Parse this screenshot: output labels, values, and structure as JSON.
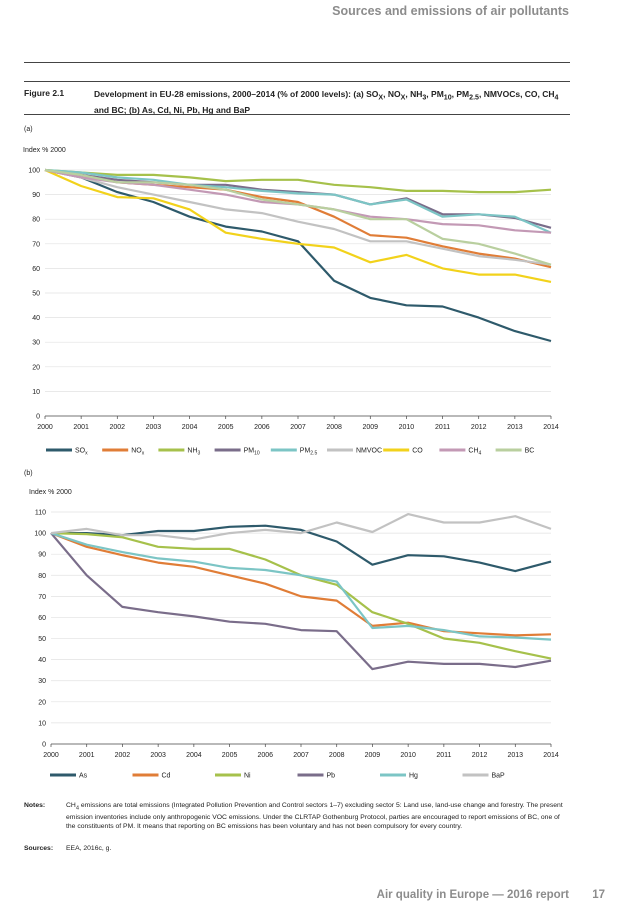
{
  "header": {
    "section_title": "Sources and emissions of air pollutants"
  },
  "figure": {
    "label": "Figure 2.1",
    "title_parts": [
      "Development in EU-28 emissions, 2000–2014 (% of 2000 levels): (a) SO",
      "X",
      ", NO",
      "X",
      ", NH",
      "3",
      ", PM",
      "10",
      ", PM",
      "2.5",
      ", NMVOCs, CO, CH",
      "4",
      " and BC; (b) As, Cd, Ni, Pb, Hg and BaP"
    ],
    "sub_a": "(a)",
    "sub_b": "(b)"
  },
  "chart_data": [
    {
      "id": "a",
      "type": "line",
      "ylabel": "Index % 2000",
      "ylim": [
        0,
        100
      ],
      "yticks": [
        0,
        10,
        20,
        30,
        40,
        50,
        60,
        70,
        80,
        90,
        100
      ],
      "x": [
        "2000",
        "2001",
        "2002",
        "2003",
        "2004",
        "2005",
        "2006",
        "2007",
        "2008",
        "2009",
        "2010",
        "2011",
        "2012",
        "2013",
        "2014"
      ],
      "grid": true,
      "legend_position": "bottom",
      "series": [
        {
          "name": "SO",
          "sub": "x",
          "color": "#2e5a6b",
          "values": [
            100,
            97,
            91,
            87,
            81,
            77,
            75,
            71,
            55,
            48,
            45,
            44.5,
            40,
            34.5,
            30.5
          ]
        },
        {
          "name": "NO",
          "sub": "x",
          "color": "#e07d37",
          "values": [
            100,
            98,
            95,
            94,
            93,
            92,
            89,
            87,
            81,
            73.5,
            72.5,
            69,
            66,
            64,
            60.5
          ]
        },
        {
          "name": "NH",
          "sub": "3",
          "color": "#a6c14b",
          "values": [
            100,
            99,
            98,
            98,
            97,
            95.5,
            96,
            96,
            94,
            93,
            91.5,
            91.5,
            91,
            91,
            92
          ]
        },
        {
          "name": "PM",
          "sub": "10",
          "color": "#7a6d8a",
          "values": [
            100,
            98,
            96,
            95,
            94,
            94,
            92,
            91,
            90,
            86,
            88.5,
            82,
            82,
            80.5,
            76.5
          ]
        },
        {
          "name": "PM",
          "sub": "2.5",
          "color": "#7cc5c5",
          "values": [
            100,
            99,
            97,
            96,
            94,
            93,
            91.5,
            90.5,
            90,
            86,
            88,
            81,
            82,
            81,
            74.5
          ]
        },
        {
          "name": "NMVOC",
          "sub": "",
          "color": "#c2c2c2",
          "values": [
            100,
            97,
            93,
            90,
            87,
            84,
            82.5,
            79,
            76,
            71,
            71,
            68,
            65,
            63.5,
            61.5
          ]
        },
        {
          "name": "CO",
          "sub": "",
          "color": "#f2d21b",
          "values": [
            100,
            93.5,
            89,
            88.5,
            84,
            74.5,
            72,
            70,
            68.5,
            62.5,
            65.5,
            60,
            57.5,
            57.5,
            54.5
          ]
        },
        {
          "name": "CH",
          "sub": "4",
          "color": "#c399b5",
          "values": [
            100,
            97,
            95,
            94,
            92,
            90,
            87,
            86,
            84,
            81,
            80,
            78,
            77.5,
            75.5,
            74.5
          ]
        },
        {
          "name": "BC",
          "sub": "",
          "color": "#b9cf9f",
          "values": [
            100,
            98,
            95,
            95,
            94,
            92,
            88,
            86,
            84,
            80,
            80,
            72,
            70,
            66,
            61.5
          ]
        }
      ]
    },
    {
      "id": "b",
      "type": "line",
      "ylabel": "Index % 2000",
      "ylim": [
        0,
        110
      ],
      "yticks": [
        0,
        10,
        20,
        30,
        40,
        50,
        60,
        70,
        80,
        90,
        100,
        110
      ],
      "x": [
        "2000",
        "2001",
        "2002",
        "2003",
        "2004",
        "2005",
        "2006",
        "2007",
        "2008",
        "2009",
        "2010",
        "2011",
        "2012",
        "2013",
        "2014"
      ],
      "grid": true,
      "legend_position": "bottom",
      "series": [
        {
          "name": "As",
          "sub": "",
          "color": "#2e5a6b",
          "values": [
            100,
            100,
            99,
            101,
            101,
            103,
            103.5,
            101.5,
            96,
            85,
            89.5,
            89,
            86,
            82,
            86.5
          ]
        },
        {
          "name": "Cd",
          "sub": "",
          "color": "#e07d37",
          "values": [
            100,
            93.5,
            89.5,
            86,
            84,
            80,
            76,
            70,
            68,
            56,
            57.5,
            53.5,
            52.5,
            51.5,
            52
          ]
        },
        {
          "name": "Ni",
          "sub": "",
          "color": "#a6c14b",
          "values": [
            100,
            99.5,
            98,
            93.5,
            92.5,
            92.5,
            87.5,
            80,
            75.5,
            62.5,
            57,
            50,
            48,
            44,
            40.5
          ]
        },
        {
          "name": "Pb",
          "sub": "",
          "color": "#7a6d8a",
          "values": [
            100,
            80,
            65,
            62.5,
            60.5,
            58,
            57,
            54,
            53.5,
            35.5,
            39,
            38,
            38,
            36.5,
            39.5
          ]
        },
        {
          "name": "Hg",
          "sub": "",
          "color": "#7cc5c5",
          "values": [
            100,
            94.5,
            91,
            88,
            86.5,
            83.5,
            82.5,
            80,
            77,
            55,
            56,
            54,
            51,
            50.5,
            49.5
          ]
        },
        {
          "name": "BaP",
          "sub": "",
          "color": "#c2c2c2",
          "values": [
            100,
            102,
            99,
            99,
            97,
            100,
            101.5,
            100,
            105,
            100.5,
            109,
            105,
            105,
            108,
            102
          ]
        }
      ]
    }
  ],
  "notes": {
    "label": "Notes:",
    "text_parts": [
      "CH",
      "4",
      " emissions are total emissions (Integrated Pollution Prevention and Control sectors 1–7) excluding sector 5: Land use, land-use change and forestry. The present emission inventories include only anthropogenic VOC emissions. Under the CLRTAP Gothenburg Protocol, parties are encouraged to report emissions of BC, one of the constituents of PM. It means that reporting on BC emissions has been voluntary and has not been compulsory for every country."
    ]
  },
  "sources": {
    "label": "Sources:",
    "text": "EEA, 2016c, g."
  },
  "footer": {
    "report_title": "Air quality in Europe — 2016 report",
    "page_number": "17"
  }
}
